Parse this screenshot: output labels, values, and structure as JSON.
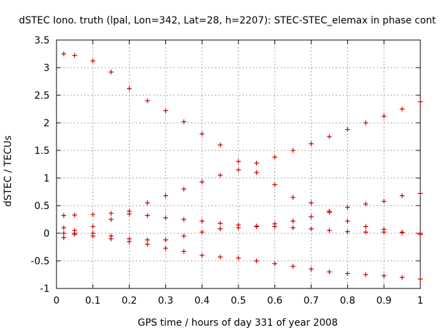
{
  "chart_data": {
    "type": "scatter",
    "title": "dSTEC Iono. truth (lpal, Lon=342, Lat=28, h=2207): STEC-STEC_elemax in phase cont",
    "xlabel": "GPS time / hours of day 331 of year 2008",
    "ylabel": "dSTEC  / TECUs",
    "xlim": [
      0,
      1
    ],
    "ylim": [
      -1,
      3.5
    ],
    "x_ticks": [
      0,
      0.1,
      0.2,
      0.3,
      0.4,
      0.5,
      0.6,
      0.7,
      0.8,
      0.9,
      1
    ],
    "x_tick_labels": [
      "0",
      "0.1",
      "0.2",
      "0.3",
      "0.4",
      "0.5",
      "0.6",
      "0.7",
      "0.8",
      "0.9",
      "1"
    ],
    "y_ticks": [
      -1,
      -0.5,
      0,
      0.5,
      1,
      1.5,
      2,
      2.5,
      3,
      3.5
    ],
    "y_tick_labels": [
      "-1",
      "-0.5",
      "0",
      "0.5",
      "1",
      "1.5",
      "2",
      "2.5",
      "3",
      "3.5"
    ],
    "grid": true,
    "marker": "+",
    "marker_color": "#cc0000",
    "series": [
      {
        "x": [
          0.02,
          0.05,
          0.1,
          0.15,
          0.2,
          0.25,
          0.3,
          0.35,
          0.4,
          0.45,
          0.5,
          0.55,
          0.6,
          0.65,
          0.7,
          0.75,
          0.8,
          0.85,
          0.9,
          0.95,
          1.0
        ],
        "y": [
          3.25,
          3.22,
          3.12,
          2.92,
          2.62,
          2.4,
          2.22,
          2.02,
          1.8,
          1.6,
          1.3,
          1.1,
          0.88,
          0.65,
          0.55,
          0.4,
          0.22,
          0.12,
          0.07,
          0.02,
          -0.02
        ]
      },
      {
        "x": [
          0.02,
          0.05,
          0.1,
          0.15,
          0.2,
          0.25,
          0.3,
          0.35,
          0.4,
          0.45,
          0.5,
          0.55,
          0.6,
          0.65,
          0.7,
          0.75,
          0.8,
          0.85,
          0.9,
          0.95,
          1.0
        ],
        "y": [
          -0.08,
          0.0,
          0.12,
          0.25,
          0.4,
          0.55,
          0.68,
          0.8,
          0.93,
          1.05,
          1.15,
          1.27,
          1.38,
          1.5,
          1.62,
          1.75,
          1.88,
          2.0,
          2.12,
          2.25,
          2.38
        ]
      },
      {
        "x": [
          0.02,
          0.05,
          0.1,
          0.15,
          0.2,
          0.25,
          0.3,
          0.35,
          0.4,
          0.45,
          0.5,
          0.55,
          0.6,
          0.65,
          0.7,
          0.75,
          0.8,
          0.85,
          0.9,
          0.95,
          1.0
        ],
        "y": [
          0.32,
          0.33,
          0.34,
          0.36,
          0.35,
          0.32,
          0.28,
          0.25,
          0.22,
          0.18,
          0.15,
          0.13,
          0.12,
          0.1,
          0.08,
          0.05,
          0.03,
          0.02,
          0.02,
          0.01,
          0.0
        ]
      },
      {
        "x": [
          0.02,
          0.05,
          0.1,
          0.15,
          0.2,
          0.25,
          0.3,
          0.35,
          0.4,
          0.45,
          0.5,
          0.55,
          0.6,
          0.65,
          0.7,
          0.75,
          0.8,
          0.85,
          0.9,
          0.95,
          1.0
        ],
        "y": [
          0.1,
          0.05,
          0.0,
          -0.05,
          -0.1,
          -0.12,
          -0.12,
          -0.05,
          0.02,
          0.08,
          0.1,
          0.12,
          0.17,
          0.22,
          0.3,
          0.38,
          0.47,
          0.53,
          0.58,
          0.68,
          0.72
        ]
      },
      {
        "x": [
          0.02,
          0.05,
          0.1,
          0.15,
          0.2,
          0.25,
          0.3,
          0.35,
          0.4,
          0.45,
          0.5,
          0.55,
          0.6,
          0.65,
          0.7,
          0.75,
          0.8,
          0.85,
          0.9,
          0.95,
          1.0
        ],
        "y": [
          0.0,
          -0.02,
          -0.05,
          -0.1,
          -0.15,
          -0.2,
          -0.27,
          -0.33,
          -0.4,
          -0.43,
          -0.45,
          -0.5,
          -0.55,
          -0.6,
          -0.65,
          -0.7,
          -0.73,
          -0.75,
          -0.77,
          -0.8,
          -0.83
        ]
      }
    ]
  }
}
